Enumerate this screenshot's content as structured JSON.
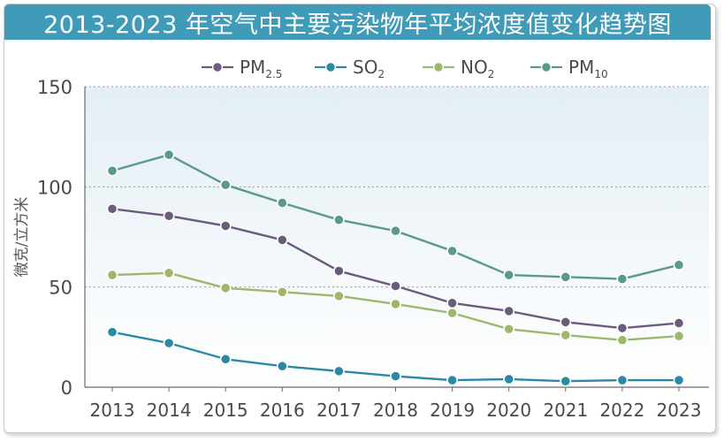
{
  "chart_data": {
    "type": "line",
    "title": "2013-2023 年空气中主要污染物年平均浓度值变化趋势图",
    "ylabel": "微克/立方米",
    "xlabel": "",
    "ylim": [
      0,
      150
    ],
    "yticks": [
      "0",
      "50",
      "100",
      "150"
    ],
    "categories": [
      "2013",
      "2014",
      "2015",
      "2016",
      "2017",
      "2018",
      "2019",
      "2020",
      "2021",
      "2022",
      "2023"
    ],
    "grid": true,
    "legend": "top-center",
    "series": [
      {
        "name": "PM",
        "sub": "2.5",
        "color": "#6b5b7e",
        "values": [
          89,
          85.5,
          80.5,
          73.5,
          58,
          50.5,
          42,
          38,
          32.5,
          29.5,
          32
        ]
      },
      {
        "name": "SO",
        "sub": "2",
        "color": "#2a8aa5",
        "values": [
          27.5,
          22,
          14,
          10.5,
          8,
          5.5,
          3.5,
          4,
          3,
          3.5,
          3.5
        ]
      },
      {
        "name": "NO",
        "sub": "2",
        "color": "#9cb86b",
        "values": [
          56,
          57,
          49.5,
          47.5,
          45.5,
          41.5,
          37,
          29,
          26,
          23.5,
          25.5
        ]
      },
      {
        "name": "PM",
        "sub": "10",
        "color": "#5a9a8c",
        "values": [
          108,
          116,
          101,
          92,
          83.5,
          78,
          68,
          56,
          55,
          54,
          61
        ]
      }
    ]
  }
}
